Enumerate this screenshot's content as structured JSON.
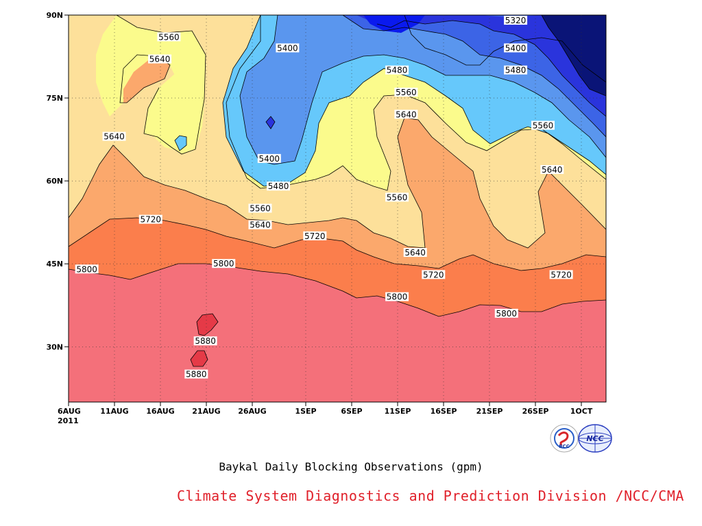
{
  "chart_data": {
    "type": "contour",
    "title": "Baykal Daily Blocking Observations (gpm)",
    "credit": "Climate System Diagnostics and Prediction Division /NCC/CMA",
    "x_ticks": [
      "6AUG",
      "11AUG",
      "16AUG",
      "21AUG",
      "26AUG",
      "1SEP",
      "6SEP",
      "11SEP",
      "16SEP",
      "21SEP",
      "26SEP",
      "1OCT"
    ],
    "x_year": "2011",
    "y_ticks": [
      "30N",
      "45N",
      "60N",
      "75N",
      "90N"
    ],
    "ylim": [
      20,
      90
    ],
    "contour_levels": [
      5320,
      5400,
      5480,
      5560,
      5640,
      5720,
      5800,
      5880
    ],
    "contour_labels": [
      {
        "text": "5320",
        "x": "24SEP",
        "y": 89
      },
      {
        "text": "5400",
        "x": "30AUG",
        "y": 84
      },
      {
        "text": "5400",
        "x": "24SEP",
        "y": 84
      },
      {
        "text": "5480",
        "x": "11SEP",
        "y": 80
      },
      {
        "text": "5480",
        "x": "24SEP",
        "y": 80
      },
      {
        "text": "5560",
        "x": "17AUG",
        "y": 86
      },
      {
        "text": "5560",
        "x": "12SEP",
        "y": 76
      },
      {
        "text": "5560",
        "x": "27SEP",
        "y": 70
      },
      {
        "text": "5640",
        "x": "16AUG",
        "y": 82
      },
      {
        "text": "5640",
        "x": "11AUG",
        "y": 68
      },
      {
        "text": "5640",
        "x": "12SEP",
        "y": 72
      },
      {
        "text": "5640",
        "x": "28SEP",
        "y": 62
      },
      {
        "text": "5400",
        "x": "28AUG",
        "y": 64
      },
      {
        "text": "5480",
        "x": "29AUG",
        "y": 59
      },
      {
        "text": "5560",
        "x": "27AUG",
        "y": 55
      },
      {
        "text": "5560",
        "x": "11SEP",
        "y": 57
      },
      {
        "text": "5640",
        "x": "27AUG",
        "y": 52
      },
      {
        "text": "5640",
        "x": "13SEP",
        "y": 47
      },
      {
        "text": "5720",
        "x": "15AUG",
        "y": 53
      },
      {
        "text": "5720",
        "x": "2SEP",
        "y": 50
      },
      {
        "text": "5720",
        "x": "15SEP",
        "y": 43
      },
      {
        "text": "5720",
        "x": "29SEP",
        "y": 43
      },
      {
        "text": "5800",
        "x": "8AUG",
        "y": 44
      },
      {
        "text": "5800",
        "x": "23AUG",
        "y": 45
      },
      {
        "text": "5800",
        "x": "11SEP",
        "y": 39
      },
      {
        "text": "5800",
        "x": "23SEP",
        "y": 36
      },
      {
        "text": "5880",
        "x": "21AUG",
        "y": 31
      },
      {
        "text": "5880",
        "x": "20AUG",
        "y": 25
      }
    ],
    "colors": {
      "5880_plus": "#e53a47",
      "5800_5880": "#f4707a",
      "5720_5800": "#fb7e4c",
      "5640_5720": "#fba86c",
      "5560_5640": "#fde09a",
      "5480_5560": "#fbfb8c",
      "5400_5480": "#66c8fb",
      "5320_5400": "#5a96ee",
      "5240_5320": "#3c64e6",
      "5160_5240": "#2a34dc",
      "below": "#0a1477"
    }
  }
}
